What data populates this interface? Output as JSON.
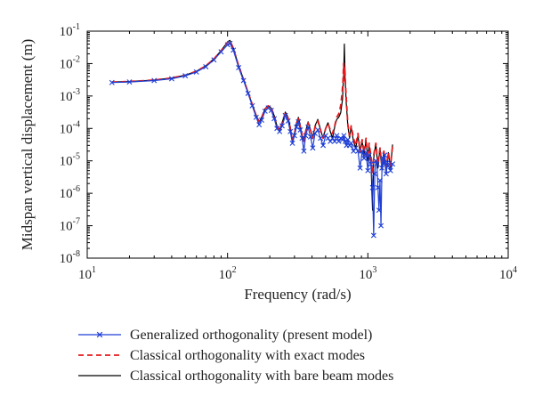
{
  "chart_data": {
    "type": "line",
    "xlabel": "Frequency (rad/s)",
    "ylabel": "Midspan vertical displacement (m)",
    "xscale": "log",
    "yscale": "log",
    "xlim": [
      10,
      10000
    ],
    "ylim": [
      1e-08,
      0.1
    ],
    "x_ticks": [
      {
        "value": 10,
        "base": "10",
        "exp": "1"
      },
      {
        "value": 100,
        "base": "10",
        "exp": "2"
      },
      {
        "value": 1000,
        "base": "10",
        "exp": "3"
      },
      {
        "value": 10000,
        "base": "10",
        "exp": "4"
      }
    ],
    "y_ticks": [
      {
        "value": 1e-08,
        "base": "10",
        "exp": "-8"
      },
      {
        "value": 1e-07,
        "base": "10",
        "exp": "-7"
      },
      {
        "value": 1e-06,
        "base": "10",
        "exp": "-6"
      },
      {
        "value": 1e-05,
        "base": "10",
        "exp": "-5"
      },
      {
        "value": 0.0001,
        "base": "10",
        "exp": "-4"
      },
      {
        "value": 0.001,
        "base": "10",
        "exp": "-3"
      },
      {
        "value": 0.01,
        "base": "10",
        "exp": "-2"
      },
      {
        "value": 0.1,
        "base": "10",
        "exp": "-1"
      }
    ],
    "grid": false,
    "legend_position": "below",
    "series": [
      {
        "name": "Classical orthogonality with bare beam modes",
        "color": "#000000",
        "style": "solid",
        "marker": "none",
        "points": [
          [
            15,
            0.0027
          ],
          [
            20,
            0.0028
          ],
          [
            30,
            0.0031
          ],
          [
            40,
            0.0036
          ],
          [
            50,
            0.0044
          ],
          [
            60,
            0.0058
          ],
          [
            70,
            0.0085
          ],
          [
            80,
            0.014
          ],
          [
            90,
            0.025
          ],
          [
            100,
            0.047
          ],
          [
            104,
            0.052
          ],
          [
            110,
            0.03
          ],
          [
            120,
            0.0085
          ],
          [
            130,
            0.0033
          ],
          [
            140,
            0.0013
          ],
          [
            150,
            0.00055
          ],
          [
            160,
            0.00025
          ],
          [
            168,
            0.00016
          ],
          [
            175,
            0.00022
          ],
          [
            185,
            0.0004
          ],
          [
            195,
            0.0005
          ],
          [
            205,
            0.00042
          ],
          [
            215,
            0.00025
          ],
          [
            225,
            0.00012
          ],
          [
            235,
            9e-05
          ],
          [
            245,
            0.00015
          ],
          [
            258,
            0.00032
          ],
          [
            270,
            0.00022
          ],
          [
            280,
            0.00011
          ],
          [
            290,
            4e-05
          ],
          [
            300,
            7e-05
          ],
          [
            310,
            0.00015
          ],
          [
            320,
            0.00022
          ],
          [
            330,
            0.00012
          ],
          [
            340,
            6e-05
          ],
          [
            350,
            4e-05
          ],
          [
            360,
            8e-05
          ],
          [
            375,
            0.00016
          ],
          [
            390,
            9e-05
          ],
          [
            405,
            5e-05
          ],
          [
            420,
            0.00012
          ],
          [
            440,
            0.00019
          ],
          [
            460,
            9e-05
          ],
          [
            480,
            5e-05
          ],
          [
            500,
            0.0001
          ],
          [
            520,
            0.00015
          ],
          [
            540,
            8e-05
          ],
          [
            560,
            5e-05
          ],
          [
            580,
            0.00011
          ],
          [
            600,
            0.00019
          ],
          [
            620,
            0.00022
          ],
          [
            640,
            0.0003
          ],
          [
            660,
            0.0008
          ],
          [
            675,
            0.009
          ],
          [
            680,
            0.04
          ],
          [
            688,
            0.0035
          ],
          [
            700,
            0.0007
          ],
          [
            720,
            0.00012
          ],
          [
            740,
            5e-05
          ],
          [
            760,
            0.00011
          ],
          [
            790,
            4e-05
          ],
          [
            820,
            2.5e-05
          ],
          [
            850,
            6e-05
          ],
          [
            880,
            1.8e-05
          ],
          [
            910,
            4e-05
          ],
          [
            940,
            1.5e-05
          ],
          [
            970,
            4.5e-05
          ],
          [
            1000,
            1e-05
          ],
          [
            1020,
            3e-05
          ],
          [
            1050,
            1.2e-05
          ],
          [
            1080,
            3e-07
          ],
          [
            1100,
            1.2e-05
          ],
          [
            1140,
            3.5e-05
          ],
          [
            1180,
            6e-06
          ],
          [
            1220,
            2.5e-05
          ],
          [
            1260,
            5e-06
          ],
          [
            1300,
            2e-05
          ],
          [
            1350,
            4e-06
          ],
          [
            1400,
            1.8e-05
          ],
          [
            1450,
            6e-06
          ],
          [
            1500,
            3.2e-05
          ]
        ]
      },
      {
        "name": "Classical orthogonality with exact modes",
        "color": "#e41a1c",
        "style": "dashed",
        "marker": "none",
        "points": [
          [
            15,
            0.0027
          ],
          [
            20,
            0.0028
          ],
          [
            30,
            0.0031
          ],
          [
            40,
            0.0036
          ],
          [
            50,
            0.0044
          ],
          [
            60,
            0.0058
          ],
          [
            70,
            0.0085
          ],
          [
            80,
            0.014
          ],
          [
            90,
            0.025
          ],
          [
            100,
            0.045
          ],
          [
            104,
            0.05
          ],
          [
            110,
            0.03
          ],
          [
            120,
            0.0085
          ],
          [
            130,
            0.0033
          ],
          [
            140,
            0.0013
          ],
          [
            150,
            0.00055
          ],
          [
            160,
            0.00025
          ],
          [
            168,
            0.00016
          ],
          [
            175,
            0.00022
          ],
          [
            185,
            0.0004
          ],
          [
            195,
            0.0005
          ],
          [
            205,
            0.00042
          ],
          [
            215,
            0.00025
          ],
          [
            225,
            0.00012
          ],
          [
            235,
            9e-05
          ],
          [
            245,
            0.00015
          ],
          [
            258,
            0.0003
          ],
          [
            270,
            0.0002
          ],
          [
            280,
            0.0001
          ],
          [
            290,
            4e-05
          ],
          [
            300,
            7e-05
          ],
          [
            310,
            0.00014
          ],
          [
            320,
            0.0002
          ],
          [
            330,
            0.00011
          ],
          [
            340,
            6e-05
          ],
          [
            350,
            4e-05
          ],
          [
            360,
            8e-05
          ],
          [
            375,
            0.00015
          ],
          [
            390,
            9e-05
          ],
          [
            405,
            5e-05
          ],
          [
            420,
            0.00011
          ],
          [
            440,
            0.00017
          ],
          [
            460,
            9e-05
          ],
          [
            480,
            5e-05
          ],
          [
            500,
            0.0001
          ],
          [
            520,
            0.00014
          ],
          [
            540,
            9e-05
          ],
          [
            560,
            7e-05
          ],
          [
            580,
            0.00012
          ],
          [
            600,
            0.00022
          ],
          [
            620,
            0.00028
          ],
          [
            640,
            0.0005
          ],
          [
            655,
            0.0012
          ],
          [
            665,
            0.003
          ],
          [
            672,
            0.01
          ],
          [
            676,
            0.003
          ],
          [
            685,
            0.008
          ],
          [
            692,
            0.0025
          ],
          [
            705,
            0.0006
          ],
          [
            720,
            0.00013
          ],
          [
            740,
            6e-05
          ],
          [
            760,
            0.00012
          ],
          [
            790,
            5e-05
          ],
          [
            820,
            3e-05
          ],
          [
            850,
            7e-05
          ],
          [
            880,
            2e-05
          ],
          [
            910,
            4.5e-05
          ],
          [
            940,
            1.8e-05
          ],
          [
            970,
            5e-05
          ],
          [
            1000,
            1.2e-05
          ],
          [
            1020,
            3.5e-05
          ],
          [
            1050,
            1.5e-05
          ],
          [
            1080,
            4e-06
          ],
          [
            1100,
            1.5e-05
          ],
          [
            1140,
            3.5e-05
          ],
          [
            1180,
            8e-06
          ],
          [
            1220,
            2.5e-05
          ],
          [
            1260,
            7e-06
          ],
          [
            1300,
            2e-05
          ],
          [
            1350,
            6e-06
          ],
          [
            1400,
            1.8e-05
          ],
          [
            1450,
            7e-06
          ],
          [
            1500,
            3e-05
          ]
        ]
      },
      {
        "name": "Generalized orthogonality (present model)",
        "color": "#1f3fd6",
        "style": "solid",
        "marker": "x",
        "points": [
          [
            15,
            0.0026
          ],
          [
            20,
            0.0027
          ],
          [
            30,
            0.003
          ],
          [
            40,
            0.0034
          ],
          [
            50,
            0.0042
          ],
          [
            60,
            0.0055
          ],
          [
            70,
            0.008
          ],
          [
            80,
            0.013
          ],
          [
            90,
            0.023
          ],
          [
            100,
            0.038
          ],
          [
            104,
            0.042
          ],
          [
            110,
            0.026
          ],
          [
            120,
            0.0075
          ],
          [
            130,
            0.003
          ],
          [
            140,
            0.0012
          ],
          [
            150,
            0.0005
          ],
          [
            160,
            0.00022
          ],
          [
            168,
            0.00013
          ],
          [
            175,
            0.00018
          ],
          [
            185,
            0.00034
          ],
          [
            195,
            0.00043
          ],
          [
            205,
            0.00036
          ],
          [
            215,
            0.0002
          ],
          [
            225,
            0.0001
          ],
          [
            235,
            8e-05
          ],
          [
            245,
            0.00012
          ],
          [
            258,
            0.00025
          ],
          [
            270,
            0.00017
          ],
          [
            280,
            8e-05
          ],
          [
            290,
            3.5e-05
          ],
          [
            300,
            6e-05
          ],
          [
            310,
            0.00011
          ],
          [
            320,
            0.00016
          ],
          [
            330,
            9e-05
          ],
          [
            340,
            5e-05
          ],
          [
            350,
            2e-05
          ],
          [
            360,
            6e-05
          ],
          [
            375,
            0.00011
          ],
          [
            390,
            5.5e-05
          ],
          [
            405,
            2.5e-05
          ],
          [
            420,
            7e-05
          ],
          [
            440,
            9e-05
          ],
          [
            460,
            5e-05
          ],
          [
            480,
            3e-05
          ],
          [
            500,
            6e-05
          ],
          [
            520,
            5e-05
          ],
          [
            540,
            4e-05
          ],
          [
            560,
            5e-05
          ],
          [
            580,
            4e-05
          ],
          [
            600,
            6e-05
          ],
          [
            620,
            4e-05
          ],
          [
            640,
            5e-05
          ],
          [
            660,
            4.5e-05
          ],
          [
            675,
            6e-05
          ],
          [
            690,
            4e-05
          ],
          [
            705,
            3e-05
          ],
          [
            720,
            4.5e-05
          ],
          [
            740,
            3e-05
          ],
          [
            760,
            3.5e-05
          ],
          [
            790,
            2e-05
          ],
          [
            820,
            2.5e-05
          ],
          [
            850,
            2e-05
          ],
          [
            880,
            6e-06
          ],
          [
            910,
            2e-05
          ],
          [
            940,
            1.2e-05
          ],
          [
            970,
            1.8e-05
          ],
          [
            1000,
            5e-06
          ],
          [
            1020,
            1.5e-05
          ],
          [
            1050,
            8e-06
          ],
          [
            1080,
            1.5e-06
          ],
          [
            1100,
            5e-08
          ],
          [
            1120,
            4e-06
          ],
          [
            1140,
            1e-05
          ],
          [
            1160,
            8e-06
          ],
          [
            1180,
            1.5e-06
          ],
          [
            1200,
            3e-07
          ],
          [
            1220,
            2.5e-06
          ],
          [
            1240,
            1e-07
          ],
          [
            1260,
            6e-06
          ],
          [
            1280,
            1.2e-05
          ],
          [
            1300,
            8e-06
          ],
          [
            1320,
            1.5e-05
          ],
          [
            1350,
            4e-06
          ],
          [
            1380,
            9e-06
          ],
          [
            1400,
            7e-06
          ],
          [
            1450,
            5e-06
          ],
          [
            1500,
            8e-06
          ]
        ]
      }
    ],
    "legend": [
      {
        "label": "Generalized orthogonality (present model)",
        "color": "#1f3fd6",
        "style": "solid",
        "marker": "x"
      },
      {
        "label": "Classical orthogonality with exact modes",
        "color": "#e41a1c",
        "style": "dashed",
        "marker": "none"
      },
      {
        "label": "Classical orthogonality with bare beam modes",
        "color": "#000000",
        "style": "solid",
        "marker": "none"
      }
    ]
  }
}
